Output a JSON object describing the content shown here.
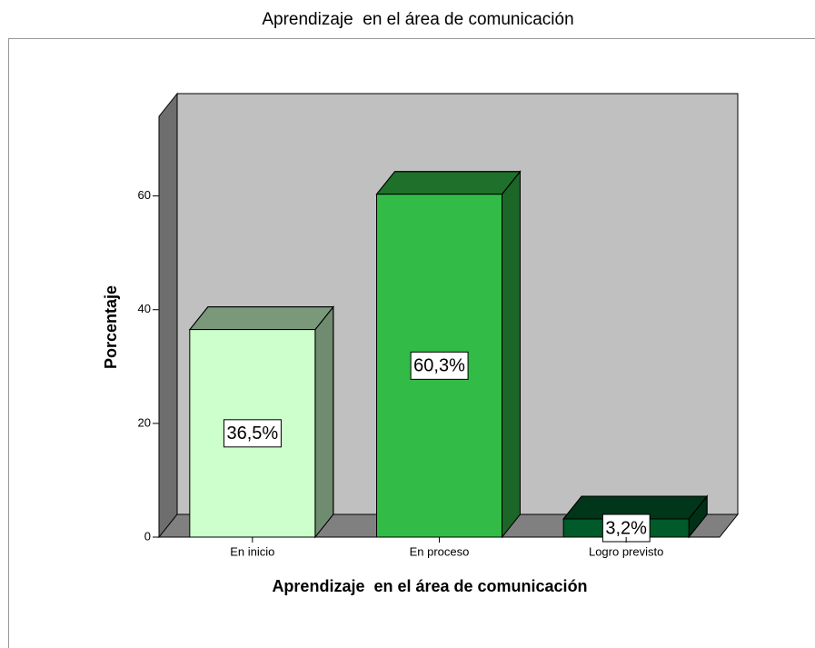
{
  "chart_data": {
    "type": "bar3d",
    "title": "Aprendizaje  en el área de comunicación",
    "x_label": "Aprendizaje  en el área de comunicación",
    "y_label": "Porcentaje",
    "categories": [
      "En inicio",
      "En proceso",
      "Logro previsto"
    ],
    "values": [
      36.5,
      60.3,
      3.2
    ],
    "value_labels": [
      "36,5%",
      "60,3%",
      "3,2%"
    ],
    "colors": [
      "#ccffcc",
      "#33bb47",
      "#005a2a"
    ],
    "ylim": [
      0,
      74
    ],
    "yticks": [
      0,
      20,
      40,
      60
    ],
    "grid": false
  }
}
